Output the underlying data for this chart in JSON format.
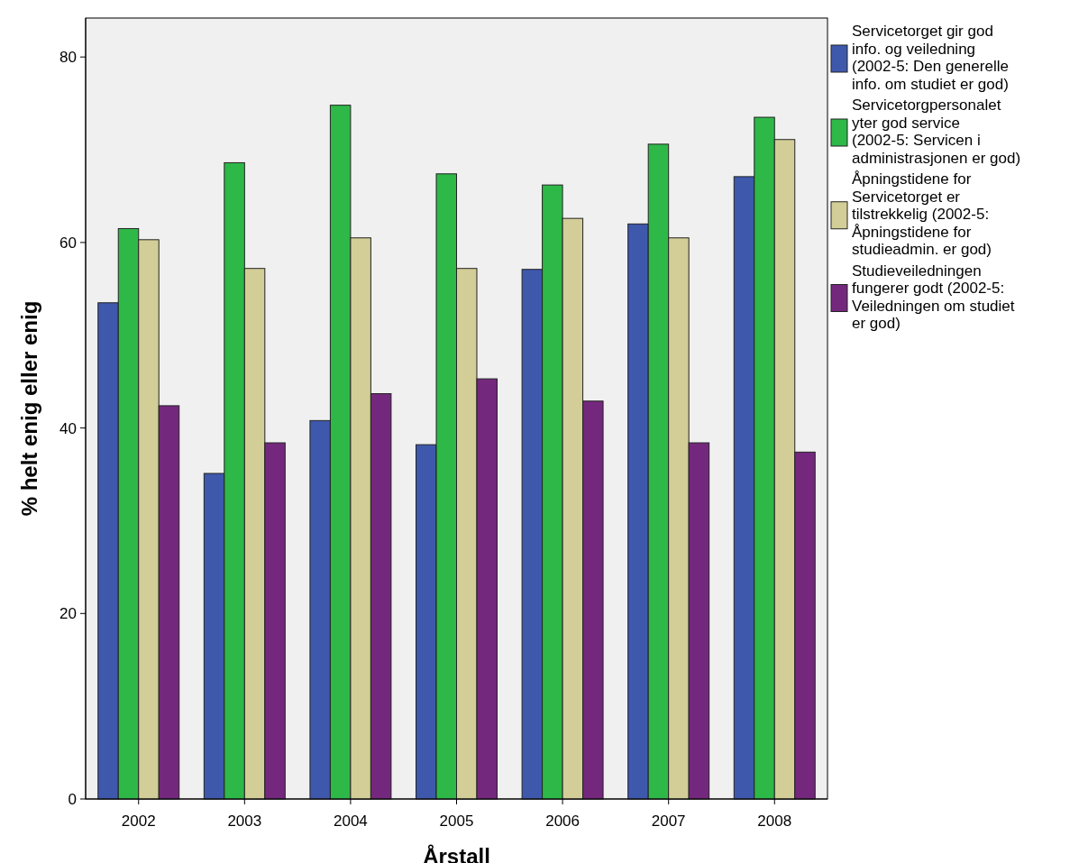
{
  "chart_data": {
    "type": "bar",
    "xlabel": "Årstall",
    "ylabel": "% helt enig eller enig",
    "categories": [
      "2002",
      "2003",
      "2004",
      "2005",
      "2006",
      "2007",
      "2008"
    ],
    "series": [
      {
        "name": "Servicetorget gir god info. og veiledning (2002-5: Den generelle info. om studiet er god)",
        "color": "#3e58ac",
        "values": [
          53.5,
          35.1,
          40.8,
          38.2,
          57.1,
          62.0,
          67.1
        ]
      },
      {
        "name": "Servicetorgpersonalet yter god service (2002-5: Servicen i administrasjonen er god)",
        "color": "#2eb848",
        "values": [
          61.5,
          68.6,
          74.8,
          67.4,
          66.2,
          70.6,
          73.5
        ]
      },
      {
        "name": "Åpningstidene for Servicetorget er tilstrekkelig (2002-5: Åpningstidene for studieadmin. er god)",
        "color": "#d3ce97",
        "values": [
          60.3,
          57.2,
          60.5,
          57.2,
          62.6,
          60.5,
          71.1
        ]
      },
      {
        "name": "Studieveiledningen fungerer godt (2002-5: Veiledningen om studiet er god)",
        "color": "#74287d",
        "values": [
          42.4,
          38.4,
          43.7,
          45.3,
          42.9,
          38.4,
          37.4
        ]
      }
    ],
    "ylim": [
      0,
      84.2
    ],
    "yticks": [
      0,
      20,
      40,
      60,
      80
    ],
    "grid": false,
    "legend": "right"
  }
}
